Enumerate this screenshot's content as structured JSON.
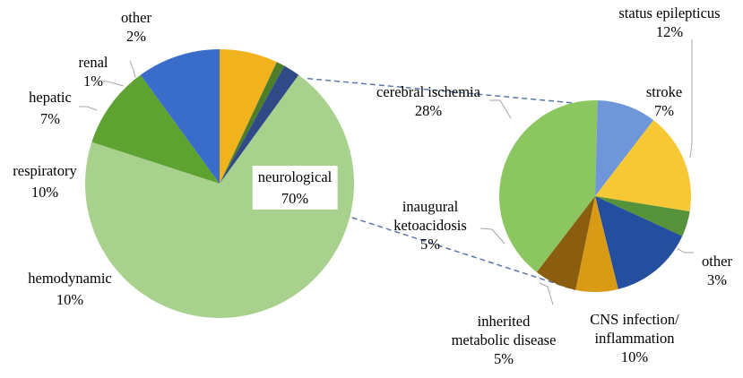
{
  "chart_data": [
    {
      "type": "pie",
      "categories": [
        "neurological",
        "hemodynamic",
        "respiratory",
        "hepatic",
        "renal",
        "other"
      ],
      "values": [
        70,
        10,
        10,
        7,
        1,
        2
      ],
      "value_labels": [
        "70%",
        "10%",
        "10%",
        "7%",
        "1%",
        "2%"
      ],
      "colors": [
        "#a9d18e",
        "#5ea232",
        "#3a6cc9",
        "#f0b21d",
        "#4e7d2b",
        "#2f4a86"
      ]
    },
    {
      "type": "pie",
      "parent_category": "neurological",
      "categories": [
        "cerebral ischemia",
        "stroke",
        "status epilepticus",
        "other",
        "CNS infection/ inflammation",
        "inherited metabolic disease",
        "inaugural ketoacidosis"
      ],
      "label_lines": [
        [
          "cerebral ischemia"
        ],
        [
          "stroke"
        ],
        [
          "status epilepticus"
        ],
        [
          "other"
        ],
        [
          "CNS infection/",
          "inflammation"
        ],
        [
          "inherited",
          "metabolic disease"
        ],
        [
          "inaugural",
          "ketoacidosis"
        ]
      ],
      "values": [
        28,
        7,
        12,
        3,
        10,
        5,
        5
      ],
      "value_labels": [
        "28%",
        "7%",
        "12%",
        "3%",
        "10%",
        "5%",
        "5%"
      ],
      "colors": [
        "#8cc660",
        "#6f96d8",
        "#f6c836",
        "#56923a",
        "#234f9e",
        "#d99b15",
        "#8b5e0f"
      ]
    }
  ]
}
